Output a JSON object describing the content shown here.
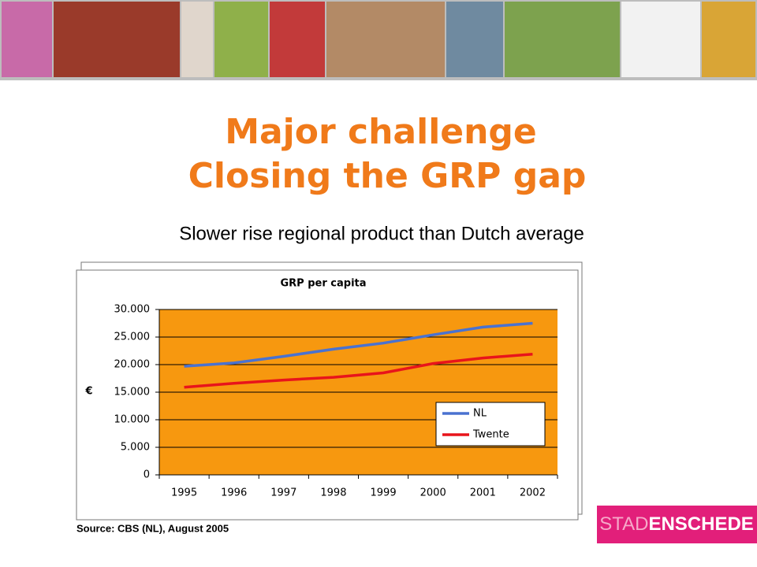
{
  "slide": {
    "title_lines": [
      "Major challenge",
      "Closing the GRP gap"
    ],
    "subtitle": "Slower rise regional product than Dutch average",
    "source": "Source: CBS (NL), August 2005",
    "logo": [
      "STAD",
      "ENSCHEDE"
    ]
  },
  "chart_data": {
    "type": "line",
    "title": "GRP per capita",
    "y_label": "€",
    "categories": [
      "1995",
      "1996",
      "1997",
      "1998",
      "1999",
      "2000",
      "2001",
      "2002"
    ],
    "series": [
      {
        "name": "NL",
        "color": "#4a72d0",
        "values": [
          19700,
          20300,
          21500,
          22800,
          23900,
          25400,
          26800,
          27500
        ]
      },
      {
        "name": "Twente",
        "color": "#e8141b",
        "values": [
          15900,
          16600,
          17200,
          17700,
          18500,
          20200,
          21200,
          21900
        ]
      }
    ],
    "ylim": [
      0,
      30000
    ],
    "yticks": [
      0,
      {
        "value": 5000,
        "label": "5.000"
      },
      {
        "value": 10000,
        "label": "10.000"
      },
      {
        "value": 15000,
        "label": "15.000"
      },
      {
        "value": 20000,
        "label": "20.000"
      },
      {
        "value": 25000,
        "label": "25.000"
      },
      {
        "value": 30000,
        "label": "30.000"
      }
    ],
    "grid": true,
    "background": "#f7980f"
  }
}
